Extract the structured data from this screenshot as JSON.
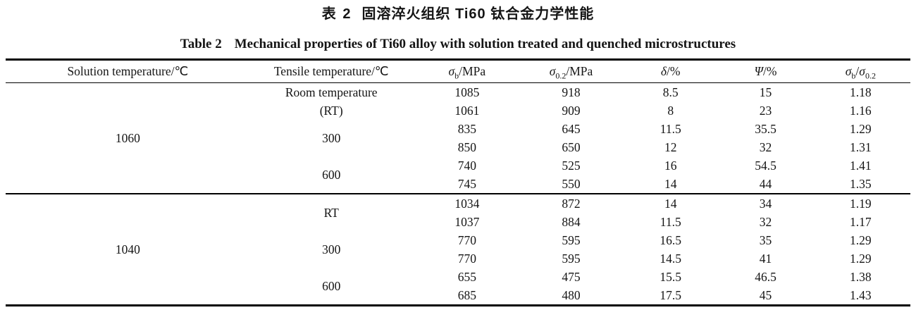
{
  "page": {
    "title_zh": {
      "prefix": "表 2",
      "text": "固溶淬火组织 Ti60 钛合金力学性能"
    },
    "title_en": {
      "prefix": "Table 2",
      "text": "Mechanical properties of Ti60 alloy with solution treated and quenched microstructures"
    }
  },
  "colors": {
    "background": "#ffffff",
    "text": "#151515",
    "rule": "#000000"
  },
  "table": {
    "columns": [
      {
        "name": "solution-temperature",
        "segments": [
          {
            "t": "Solution temperature/℃"
          }
        ]
      },
      {
        "name": "tensile-temperature",
        "segments": [
          {
            "t": "Tensile temperature/℃"
          }
        ]
      },
      {
        "name": "sigma-b",
        "segments": [
          {
            "t": "σ",
            "i": true
          },
          {
            "t": "b",
            "sub": true
          },
          {
            "t": "/MPa"
          }
        ]
      },
      {
        "name": "sigma-0-2",
        "segments": [
          {
            "t": "σ",
            "i": true
          },
          {
            "t": "0.2",
            "sub": true
          },
          {
            "t": "/MPa"
          }
        ]
      },
      {
        "name": "delta",
        "segments": [
          {
            "t": "δ",
            "i": true
          },
          {
            "t": "/%"
          }
        ]
      },
      {
        "name": "psi",
        "segments": [
          {
            "t": "Ψ",
            "i": true
          },
          {
            "t": "/%"
          }
        ]
      },
      {
        "name": "sigma-ratio",
        "segments": [
          {
            "t": "σ",
            "i": true
          },
          {
            "t": "b",
            "sub": true
          },
          {
            "t": "/"
          },
          {
            "t": "σ",
            "i": true
          },
          {
            "t": "0.2",
            "sub": true
          }
        ]
      }
    ],
    "groups": [
      {
        "solution_temperature": "1060",
        "tensile_groups": [
          {
            "label_lines": [
              "Room temperature",
              "(RT)"
            ],
            "rows": [
              [
                "1085",
                "918",
                "8.5",
                "15",
                "1.18"
              ],
              [
                "1061",
                "909",
                "8",
                "23",
                "1.16"
              ]
            ]
          },
          {
            "label_lines": [
              "300"
            ],
            "rows": [
              [
                "835",
                "645",
                "11.5",
                "35.5",
                "1.29"
              ],
              [
                "850",
                "650",
                "12",
                "32",
                "1.31"
              ]
            ]
          },
          {
            "label_lines": [
              "600"
            ],
            "rows": [
              [
                "740",
                "525",
                "16",
                "54.5",
                "1.41"
              ],
              [
                "745",
                "550",
                "14",
                "44",
                "1.35"
              ]
            ]
          }
        ]
      },
      {
        "solution_temperature": "1040",
        "tensile_groups": [
          {
            "label_lines": [
              "RT"
            ],
            "rows": [
              [
                "1034",
                "872",
                "14",
                "34",
                "1.19"
              ],
              [
                "1037",
                "884",
                "11.5",
                "32",
                "1.17"
              ]
            ]
          },
          {
            "label_lines": [
              "300"
            ],
            "rows": [
              [
                "770",
                "595",
                "16.5",
                "35",
                "1.29"
              ],
              [
                "770",
                "595",
                "14.5",
                "41",
                "1.29"
              ]
            ]
          },
          {
            "label_lines": [
              "600"
            ],
            "rows": [
              [
                "655",
                "475",
                "15.5",
                "46.5",
                "1.38"
              ],
              [
                "685",
                "480",
                "17.5",
                "45",
                "1.43"
              ]
            ]
          }
        ]
      }
    ]
  }
}
